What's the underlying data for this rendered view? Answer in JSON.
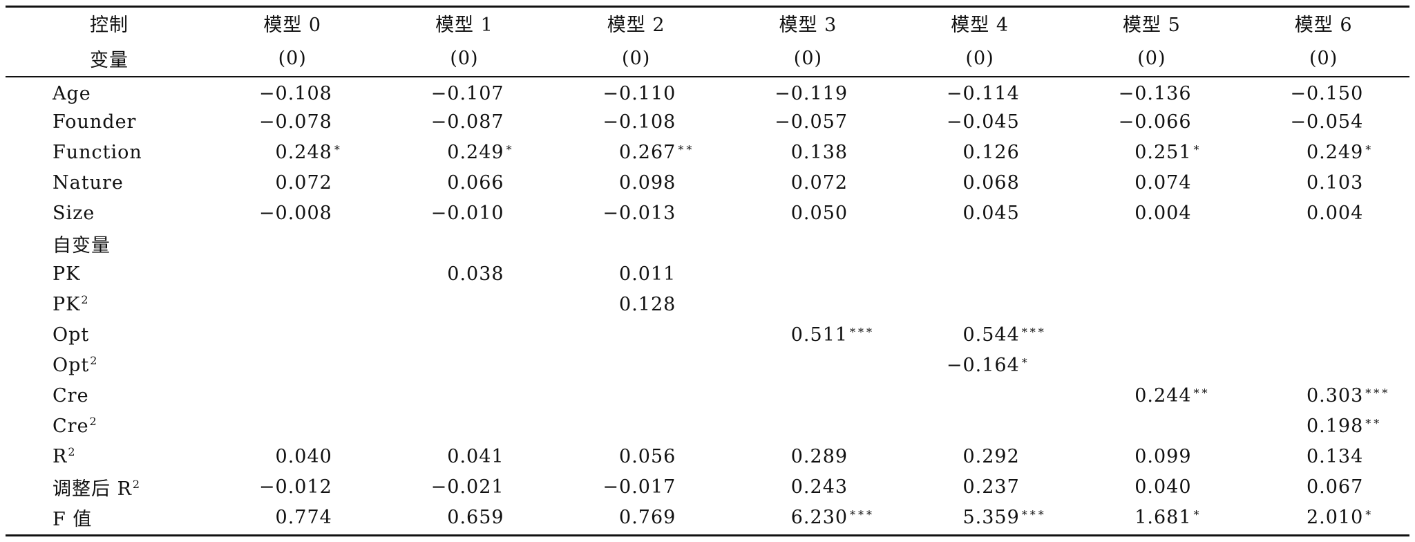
{
  "table": {
    "header_row1": [
      "控制",
      "模型 0",
      "模型 1",
      "模型 2",
      "模型 3",
      "模型 4",
      "模型 5",
      "模型 6"
    ],
    "header_row2": [
      "变量",
      "(0)",
      "(0)",
      "(0)",
      "(0)",
      "(0)",
      "(0)",
      "(0)"
    ],
    "rows": [
      {
        "label": "Age",
        "sup": "",
        "cells": [
          {
            "v": "−0.108",
            "s": ""
          },
          {
            "v": "−0.107",
            "s": ""
          },
          {
            "v": "−0.110",
            "s": ""
          },
          {
            "v": "−0.119",
            "s": ""
          },
          {
            "v": "−0.114",
            "s": ""
          },
          {
            "v": "−0.136",
            "s": ""
          },
          {
            "v": "−0.150",
            "s": ""
          }
        ]
      },
      {
        "label": "Founder",
        "sup": "",
        "cells": [
          {
            "v": "−0.078",
            "s": ""
          },
          {
            "v": "−0.087",
            "s": ""
          },
          {
            "v": "−0.108",
            "s": ""
          },
          {
            "v": "−0.057",
            "s": ""
          },
          {
            "v": "−0.045",
            "s": ""
          },
          {
            "v": "−0.066",
            "s": ""
          },
          {
            "v": "−0.054",
            "s": ""
          }
        ]
      },
      {
        "label": "Function",
        "sup": "",
        "cells": [
          {
            "v": "0.248",
            "s": "*"
          },
          {
            "v": "0.249",
            "s": "*"
          },
          {
            "v": "0.267",
            "s": "**"
          },
          {
            "v": "0.138",
            "s": ""
          },
          {
            "v": "0.126",
            "s": ""
          },
          {
            "v": "0.251",
            "s": "*"
          },
          {
            "v": "0.249",
            "s": "*"
          }
        ]
      },
      {
        "label": "Nature",
        "sup": "",
        "cells": [
          {
            "v": "0.072",
            "s": ""
          },
          {
            "v": "0.066",
            "s": ""
          },
          {
            "v": "0.098",
            "s": ""
          },
          {
            "v": "0.072",
            "s": ""
          },
          {
            "v": "0.068",
            "s": ""
          },
          {
            "v": "0.074",
            "s": ""
          },
          {
            "v": "0.103",
            "s": ""
          }
        ]
      },
      {
        "label": "Size",
        "sup": "",
        "cells": [
          {
            "v": "−0.008",
            "s": ""
          },
          {
            "v": "−0.010",
            "s": ""
          },
          {
            "v": "−0.013",
            "s": ""
          },
          {
            "v": "0.050",
            "s": ""
          },
          {
            "v": "0.045",
            "s": ""
          },
          {
            "v": "0.004",
            "s": ""
          },
          {
            "v": "0.004",
            "s": ""
          }
        ]
      },
      {
        "label": "自变量",
        "sup": "",
        "cells": [
          {
            "v": "",
            "s": ""
          },
          {
            "v": "",
            "s": ""
          },
          {
            "v": "",
            "s": ""
          },
          {
            "v": "",
            "s": ""
          },
          {
            "v": "",
            "s": ""
          },
          {
            "v": "",
            "s": ""
          },
          {
            "v": "",
            "s": ""
          }
        ]
      },
      {
        "label": "PK",
        "sup": "",
        "cells": [
          {
            "v": "",
            "s": ""
          },
          {
            "v": "0.038",
            "s": ""
          },
          {
            "v": "0.011",
            "s": ""
          },
          {
            "v": "",
            "s": ""
          },
          {
            "v": "",
            "s": ""
          },
          {
            "v": "",
            "s": ""
          },
          {
            "v": "",
            "s": ""
          }
        ]
      },
      {
        "label": "PK",
        "sup": "2",
        "cells": [
          {
            "v": "",
            "s": ""
          },
          {
            "v": "",
            "s": ""
          },
          {
            "v": "0.128",
            "s": ""
          },
          {
            "v": "",
            "s": ""
          },
          {
            "v": "",
            "s": ""
          },
          {
            "v": "",
            "s": ""
          },
          {
            "v": "",
            "s": ""
          }
        ]
      },
      {
        "label": "Opt",
        "sup": "",
        "cells": [
          {
            "v": "",
            "s": ""
          },
          {
            "v": "",
            "s": ""
          },
          {
            "v": "",
            "s": ""
          },
          {
            "v": "0.511",
            "s": "***"
          },
          {
            "v": "0.544",
            "s": "***"
          },
          {
            "v": "",
            "s": ""
          },
          {
            "v": "",
            "s": ""
          }
        ]
      },
      {
        "label": "Opt",
        "sup": "2",
        "cells": [
          {
            "v": "",
            "s": ""
          },
          {
            "v": "",
            "s": ""
          },
          {
            "v": "",
            "s": ""
          },
          {
            "v": "",
            "s": ""
          },
          {
            "v": "−0.164",
            "s": "*"
          },
          {
            "v": "",
            "s": ""
          },
          {
            "v": "",
            "s": ""
          }
        ]
      },
      {
        "label": "Cre",
        "sup": "",
        "cells": [
          {
            "v": "",
            "s": ""
          },
          {
            "v": "",
            "s": ""
          },
          {
            "v": "",
            "s": ""
          },
          {
            "v": "",
            "s": ""
          },
          {
            "v": "",
            "s": ""
          },
          {
            "v": "0.244",
            "s": "**"
          },
          {
            "v": "0.303",
            "s": "***"
          }
        ]
      },
      {
        "label": "Cre",
        "sup": "2",
        "cells": [
          {
            "v": "",
            "s": ""
          },
          {
            "v": "",
            "s": ""
          },
          {
            "v": "",
            "s": ""
          },
          {
            "v": "",
            "s": ""
          },
          {
            "v": "",
            "s": ""
          },
          {
            "v": "",
            "s": ""
          },
          {
            "v": "0.198",
            "s": "**"
          }
        ]
      },
      {
        "label": "R",
        "sup": "2",
        "cells": [
          {
            "v": "0.040",
            "s": ""
          },
          {
            "v": "0.041",
            "s": ""
          },
          {
            "v": "0.056",
            "s": ""
          },
          {
            "v": "0.289",
            "s": ""
          },
          {
            "v": "0.292",
            "s": ""
          },
          {
            "v": "0.099",
            "s": ""
          },
          {
            "v": "0.134",
            "s": ""
          }
        ]
      },
      {
        "label": "调整后 R",
        "sup": "2",
        "cells": [
          {
            "v": "−0.012",
            "s": ""
          },
          {
            "v": "−0.021",
            "s": ""
          },
          {
            "v": "−0.017",
            "s": ""
          },
          {
            "v": "0.243",
            "s": ""
          },
          {
            "v": "0.237",
            "s": ""
          },
          {
            "v": "0.040",
            "s": ""
          },
          {
            "v": "0.067",
            "s": ""
          }
        ]
      },
      {
        "label": "F 值",
        "sup": "",
        "cells": [
          {
            "v": "0.774",
            "s": ""
          },
          {
            "v": "0.659",
            "s": ""
          },
          {
            "v": "0.769",
            "s": ""
          },
          {
            "v": "6.230",
            "s": "***"
          },
          {
            "v": "5.359",
            "s": "***"
          },
          {
            "v": "1.681",
            "s": "*"
          },
          {
            "v": "2.010",
            "s": "*"
          }
        ]
      }
    ]
  }
}
